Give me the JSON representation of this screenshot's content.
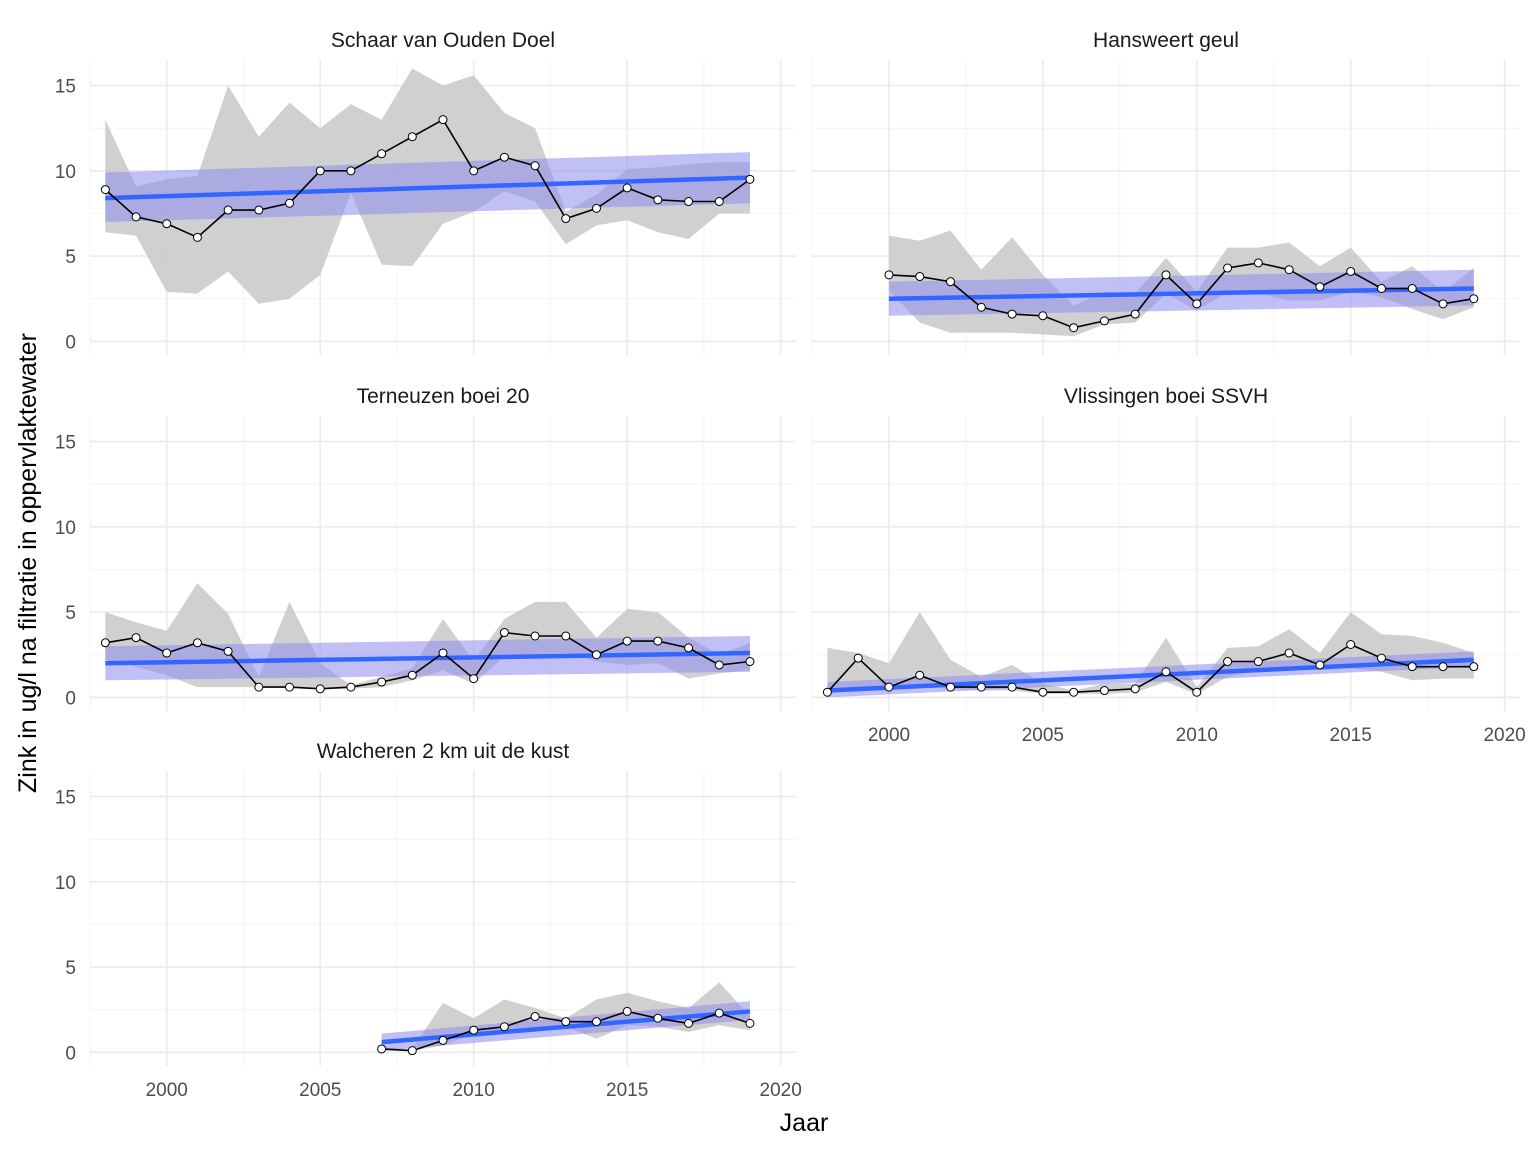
{
  "figure": {
    "xlabel": "Jaar",
    "ylabel": "Zink in ug/l na filtratie in oppervlaktewater",
    "x_ticks": [
      "2000",
      "2005",
      "2010",
      "2015",
      "2020"
    ],
    "y_ticks": [
      "0",
      "5",
      "10",
      "15"
    ]
  },
  "colors": {
    "ribbon": "#c8c8c8",
    "trend": "#3366ff",
    "trend_band": "#8c8cf0",
    "line": "#000000",
    "point_fill": "#ffffff",
    "grid_major": "#ebebeb",
    "grid_minor": "#f4f4f4"
  },
  "chart_data": [
    {
      "type": "line",
      "title": "Schaar van Ouden Doel",
      "xlim": [
        1997.5,
        2020.5
      ],
      "ylim": [
        -0.8,
        16.5
      ],
      "x": [
        1998,
        1999,
        2000,
        2001,
        2002,
        2003,
        2004,
        2005,
        2006,
        2007,
        2008,
        2009,
        2010,
        2011,
        2012,
        2013,
        2014,
        2015,
        2016,
        2017,
        2018,
        2019
      ],
      "series": [
        {
          "values": [
            8.9,
            7.3,
            6.9,
            6.1,
            7.7,
            7.7,
            8.1,
            10.0,
            10.0,
            11.0,
            12.0,
            13.0,
            10.0,
            10.8,
            10.3,
            7.2,
            7.8,
            9.0,
            8.3,
            8.2,
            8.2,
            9.5
          ]
        }
      ],
      "ribbon": {
        "lower": [
          6.4,
          6.2,
          2.9,
          2.8,
          4.1,
          2.2,
          2.5,
          3.9,
          8.7,
          4.5,
          4.4,
          6.9,
          7.6,
          8.8,
          8.2,
          5.7,
          6.8,
          7.1,
          6.4,
          6.0,
          7.5,
          7.5
        ],
        "upper": [
          13.0,
          9.1,
          9.5,
          9.7,
          15.0,
          12.0,
          14.0,
          12.5,
          13.9,
          13.0,
          16.0,
          15.0,
          15.6,
          13.4,
          12.5,
          7.6,
          8.6,
          10.1,
          10.2,
          10.4,
          10.5,
          10.5
        ]
      },
      "trend": {
        "x": [
          1998,
          2019
        ],
        "y": [
          8.4,
          9.6
        ],
        "band_lower": [
          7.0,
          8.1
        ],
        "band_upper": [
          9.9,
          11.1
        ]
      }
    },
    {
      "type": "line",
      "title": "Hansweert geul",
      "xlim": [
        1997.5,
        2020.5
      ],
      "ylim": [
        -0.8,
        16.5
      ],
      "x": [
        2000,
        2001,
        2002,
        2003,
        2004,
        2005,
        2006,
        2007,
        2008,
        2009,
        2010,
        2011,
        2012,
        2013,
        2014,
        2015,
        2016,
        2017,
        2018,
        2019
      ],
      "series": [
        {
          "values": [
            3.9,
            3.8,
            3.5,
            2.0,
            1.6,
            1.5,
            0.8,
            1.2,
            1.6,
            3.9,
            2.2,
            4.3,
            4.6,
            4.2,
            3.2,
            4.1,
            3.1,
            3.1,
            2.2,
            2.5
          ]
        }
      ],
      "ribbon": {
        "lower": [
          3.0,
          1.1,
          0.5,
          0.5,
          0.5,
          0.4,
          0.3,
          1.0,
          1.1,
          2.8,
          1.8,
          2.9,
          2.8,
          2.4,
          2.4,
          2.9,
          2.6,
          1.9,
          1.3,
          2.0
        ],
        "upper": [
          6.2,
          5.9,
          6.5,
          4.2,
          6.1,
          3.9,
          2.1,
          2.9,
          2.8,
          4.9,
          2.9,
          5.5,
          5.5,
          5.8,
          4.4,
          5.5,
          3.5,
          4.4,
          2.9,
          4.3
        ]
      },
      "trend": {
        "x": [
          2000,
          2019
        ],
        "y": [
          2.5,
          3.1
        ],
        "band_lower": [
          1.5,
          2.1
        ],
        "band_upper": [
          3.5,
          4.2
        ]
      }
    },
    {
      "type": "line",
      "title": "Terneuzen boei 20",
      "xlim": [
        1997.5,
        2020.5
      ],
      "ylim": [
        -0.8,
        16.5
      ],
      "x": [
        1998,
        1999,
        2000,
        2001,
        2002,
        2003,
        2004,
        2005,
        2006,
        2007,
        2008,
        2009,
        2010,
        2011,
        2012,
        2013,
        2014,
        2015,
        2016,
        2017,
        2018,
        2019
      ],
      "series": [
        {
          "values": [
            3.2,
            3.5,
            2.6,
            3.2,
            2.7,
            0.6,
            0.6,
            0.5,
            0.6,
            0.9,
            1.3,
            2.6,
            1.1,
            3.8,
            3.6,
            3.6,
            2.5,
            3.3,
            3.3,
            2.9,
            1.9,
            2.1
          ]
        }
      ],
      "ribbon": {
        "lower": [
          2.2,
          1.8,
          1.3,
          0.6,
          0.6,
          0.6,
          0.6,
          0.5,
          0.5,
          0.6,
          1.0,
          1.6,
          0.8,
          2.4,
          2.5,
          2.6,
          2.1,
          1.9,
          2.0,
          1.1,
          1.4,
          1.6
        ],
        "upper": [
          5.0,
          4.4,
          3.9,
          6.7,
          4.9,
          1.2,
          5.6,
          2.0,
          0.7,
          1.2,
          1.7,
          4.6,
          2.1,
          4.6,
          5.6,
          5.6,
          3.5,
          5.2,
          5.0,
          3.5,
          2.5,
          3.2
        ]
      },
      "trend": {
        "x": [
          1998,
          2019
        ],
        "y": [
          2.0,
          2.6
        ],
        "band_lower": [
          1.0,
          1.5
        ],
        "band_upper": [
          3.0,
          3.6
        ]
      }
    },
    {
      "type": "line",
      "title": "Vlissingen boei SSVH",
      "xlim": [
        1997.5,
        2020.5
      ],
      "ylim": [
        -0.8,
        16.5
      ],
      "x": [
        1998,
        1999,
        2000,
        2001,
        2002,
        2003,
        2004,
        2005,
        2006,
        2007,
        2008,
        2009,
        2010,
        2011,
        2012,
        2013,
        2014,
        2015,
        2016,
        2017,
        2018,
        2019
      ],
      "series": [
        {
          "values": [
            0.3,
            2.3,
            0.6,
            1.3,
            0.6,
            0.6,
            0.6,
            0.3,
            0.3,
            0.4,
            0.5,
            1.5,
            0.3,
            2.1,
            2.1,
            2.6,
            1.9,
            3.1,
            2.3,
            1.8,
            1.8,
            1.8
          ]
        }
      ],
      "ribbon": {
        "lower": [
          0.2,
          0.5,
          0.5,
          0.6,
          0.5,
          0.4,
          0.4,
          0.2,
          0.2,
          0.2,
          0.3,
          0.9,
          0.2,
          1.2,
          1.6,
          1.8,
          1.6,
          1.7,
          1.5,
          1.0,
          1.1,
          1.1
        ],
        "upper": [
          2.9,
          2.6,
          2.0,
          5.0,
          2.2,
          1.2,
          1.9,
          0.8,
          0.4,
          0.8,
          0.8,
          3.5,
          0.6,
          2.9,
          3.0,
          4.0,
          2.6,
          5.0,
          3.7,
          3.6,
          3.2,
          2.6
        ]
      },
      "trend": {
        "x": [
          1998,
          2019
        ],
        "y": [
          0.4,
          2.2
        ],
        "band_lower": [
          0.0,
          1.8
        ],
        "band_upper": [
          0.9,
          2.7
        ]
      }
    },
    {
      "type": "line",
      "title": "Walcheren 2 km uit de kust",
      "xlim": [
        1997.5,
        2020.5
      ],
      "ylim": [
        -0.8,
        16.5
      ],
      "x": [
        2007,
        2008,
        2009,
        2010,
        2011,
        2012,
        2013,
        2014,
        2015,
        2016,
        2017,
        2018,
        2019
      ],
      "series": [
        {
          "values": [
            0.2,
            0.1,
            0.7,
            1.3,
            1.5,
            2.1,
            1.8,
            1.8,
            2.4,
            2.0,
            1.7,
            2.3,
            1.7
          ]
        }
      ],
      "ribbon": {
        "lower": [
          0.1,
          0.1,
          0.4,
          1.1,
          1.1,
          1.2,
          1.5,
          0.8,
          1.6,
          1.5,
          1.2,
          1.6,
          1.3
        ],
        "upper": [
          0.3,
          0.2,
          2.9,
          2.0,
          3.1,
          2.6,
          2.0,
          3.1,
          3.5,
          3.0,
          2.6,
          4.1,
          2.1
        ]
      },
      "trend": {
        "x": [
          2007,
          2019
        ],
        "y": [
          0.6,
          2.4
        ],
        "band_lower": [
          0.1,
          1.9
        ],
        "band_upper": [
          1.1,
          3.0
        ]
      }
    }
  ]
}
